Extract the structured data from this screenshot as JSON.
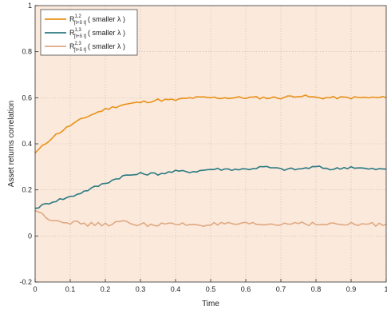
{
  "chart_data": {
    "type": "line",
    "xlabel": "Time",
    "ylabel": "Asset returns correlation",
    "xlim": [
      0,
      1
    ],
    "ylim": [
      -0.2,
      1
    ],
    "x_ticks": [
      "0",
      "0.1",
      "0.2",
      "0.3",
      "0.4",
      "0.5",
      "0.6",
      "0.7",
      "0.8",
      "0.9",
      "1"
    ],
    "y_ticks": [
      "-0.2",
      "0",
      "0.2",
      "0.4",
      "0.6",
      "0.8",
      "1"
    ],
    "grid": true,
    "legend_position": "top-left",
    "background_color": "#fbe9dc",
    "legend": [
      {
        "base": "R",
        "sup": "1,2",
        "sub": "[t+δ t]",
        "suffix": "( smaller λ )",
        "color": "#e8921a"
      },
      {
        "base": "R",
        "sup": "1,3",
        "sub": "[t+δ t]",
        "suffix": "( smaller λ )",
        "color": "#2a7a82"
      },
      {
        "base": "R",
        "sup": "2,3",
        "sub": "[t+δ t]",
        "suffix": "( smaller λ )",
        "color": "#dfa982"
      }
    ],
    "x": [
      0,
      0.05,
      0.1,
      0.15,
      0.2,
      0.25,
      0.3,
      0.35,
      0.4,
      0.45,
      0.5,
      0.55,
      0.6,
      0.65,
      0.7,
      0.75,
      0.8,
      0.85,
      0.9,
      0.95,
      1
    ],
    "series": [
      {
        "color": "#e8921a",
        "values": [
          0.36,
          0.43,
          0.48,
          0.52,
          0.55,
          0.57,
          0.58,
          0.59,
          0.59,
          0.6,
          0.6,
          0.6,
          0.6,
          0.6,
          0.6,
          0.61,
          0.6,
          0.6,
          0.6,
          0.6,
          0.6
        ]
      },
      {
        "color": "#2a7a82",
        "values": [
          0.12,
          0.15,
          0.17,
          0.2,
          0.23,
          0.26,
          0.27,
          0.27,
          0.28,
          0.28,
          0.29,
          0.29,
          0.29,
          0.3,
          0.29,
          0.29,
          0.3,
          0.29,
          0.3,
          0.29,
          0.29
        ]
      },
      {
        "color": "#dfa982",
        "values": [
          0.11,
          0.07,
          0.06,
          0.05,
          0.05,
          0.06,
          0.05,
          0.05,
          0.05,
          0.05,
          0.05,
          0.05,
          0.05,
          0.05,
          0.05,
          0.06,
          0.05,
          0.05,
          0.05,
          0.05,
          0.05
        ]
      }
    ]
  }
}
